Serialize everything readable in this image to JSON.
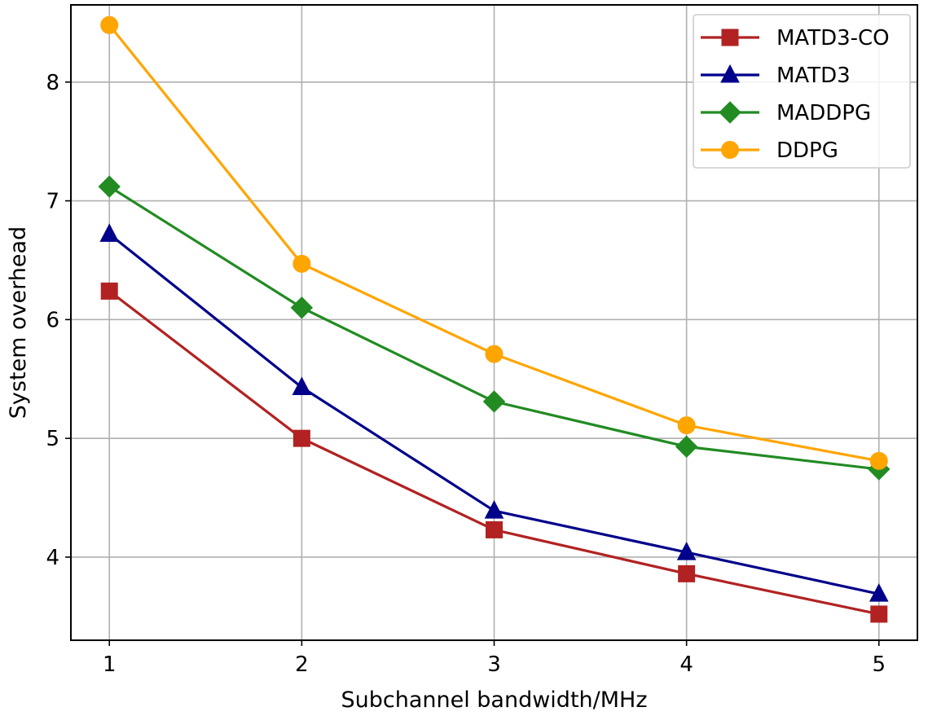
{
  "chart_data": {
    "type": "line",
    "x": [
      1,
      2,
      3,
      4,
      5
    ],
    "xticks": [
      "1",
      "2",
      "3",
      "4",
      "5"
    ],
    "yticks": [
      "4",
      "5",
      "6",
      "7",
      "8"
    ],
    "xlabel": "Subchannel bandwidth/MHz",
    "ylabel": "System overhead",
    "xlim": [
      0.8,
      5.2
    ],
    "ylim": [
      3.3,
      8.65
    ],
    "grid": true,
    "legend_position": "top-right",
    "series": [
      {
        "name": "MATD3-CO",
        "values": [
          6.24,
          5.0,
          4.23,
          3.86,
          3.52
        ],
        "color": "#b22222",
        "marker": "square"
      },
      {
        "name": "MATD3",
        "values": [
          6.72,
          5.43,
          4.39,
          4.04,
          3.69
        ],
        "color": "#00008b",
        "marker": "triangle"
      },
      {
        "name": "MADDPG",
        "values": [
          7.12,
          6.1,
          5.31,
          4.93,
          4.74
        ],
        "color": "#228b22",
        "marker": "diamond"
      },
      {
        "name": "DDPG",
        "values": [
          8.48,
          6.47,
          5.71,
          5.11,
          4.81
        ],
        "color": "#ffa500",
        "marker": "circle"
      }
    ]
  }
}
